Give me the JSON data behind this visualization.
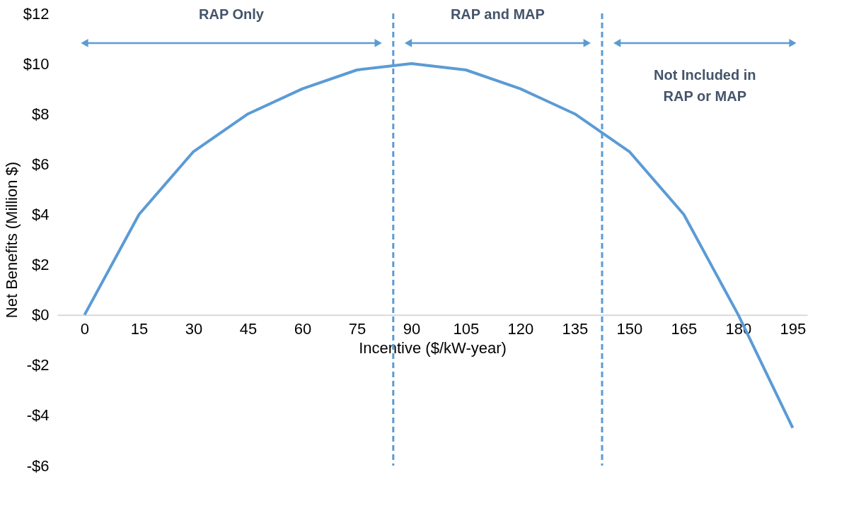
{
  "chart_data": {
    "type": "line",
    "xlabel": "Incentive ($/kW-year)",
    "ylabel": "Net Benefits (Million $)",
    "x": [
      0,
      15,
      30,
      45,
      60,
      75,
      90,
      105,
      120,
      135,
      150,
      165,
      180,
      195
    ],
    "series": [
      {
        "color": "#5b9bd5",
        "values": [
          0,
          4,
          6.5,
          8,
          9,
          9.75,
          10,
          9.75,
          9,
          8,
          6.5,
          4,
          0,
          -4.5
        ]
      }
    ],
    "xlim": [
      -7.5,
      199
    ],
    "xticks": [
      0,
      15,
      30,
      45,
      60,
      75,
      90,
      105,
      120,
      135,
      150,
      165,
      180,
      195
    ],
    "ylim": [
      -6,
      12
    ],
    "yticks": [
      {
        "value": -6,
        "label": "-$6"
      },
      {
        "value": -4,
        "label": "-$4"
      },
      {
        "value": -2,
        "label": "-$2"
      },
      {
        "value": 0,
        "label": "$0"
      },
      {
        "value": 2,
        "label": "$2"
      },
      {
        "value": 4,
        "label": "$4"
      },
      {
        "value": 6,
        "label": "$6"
      },
      {
        "value": 8,
        "label": "$8"
      },
      {
        "value": 10,
        "label": "$10"
      },
      {
        "value": 12,
        "label": "$12"
      }
    ],
    "ref_lines": [
      {
        "axis": "x",
        "value": 85,
        "color": "#5b9bd5",
        "line_style": "dashed"
      },
      {
        "axis": "x",
        "value": 142.5,
        "color": "#5b9bd5",
        "line_style": "dashed"
      }
    ],
    "annotations": [
      "RAP Only",
      "RAP and MAP",
      "Not Included in\nRAP or MAP"
    ],
    "grid": false,
    "marker": "none",
    "line_style": "solid"
  }
}
